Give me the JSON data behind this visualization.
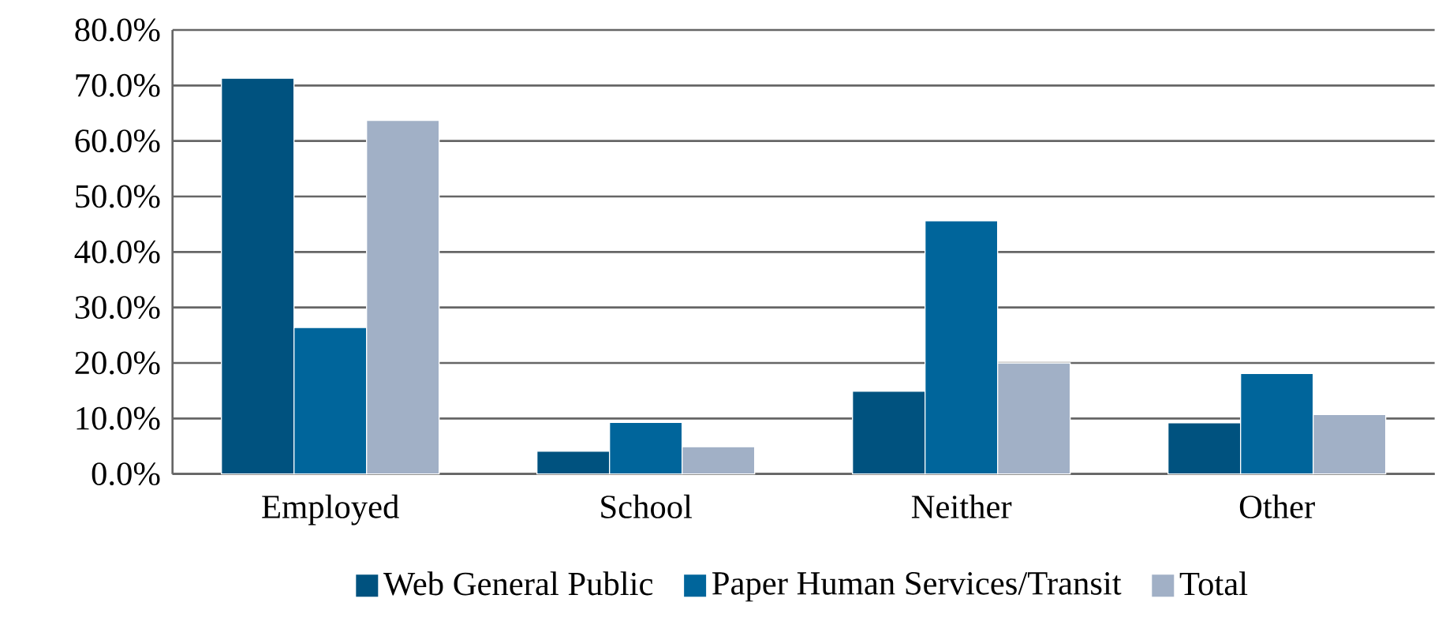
{
  "chart_data": {
    "type": "bar",
    "categories": [
      "Employed",
      "School",
      "Neither",
      "Other"
    ],
    "series": [
      {
        "name": "Web General Public",
        "color": "#00527f",
        "values": [
          71.3,
          4.1,
          14.9,
          9.2
        ]
      },
      {
        "name": "Paper Human Services/Transit",
        "color": "#00659b",
        "values": [
          26.4,
          9.3,
          45.6,
          18.1
        ]
      },
      {
        "name": "Total",
        "color": "#a1b0c6",
        "values": [
          63.7,
          4.9,
          20.0,
          10.7
        ]
      }
    ],
    "ylim": [
      0,
      80
    ],
    "yticks": [
      {
        "value": 0,
        "label": "0.0%"
      },
      {
        "value": 10,
        "label": "10.0%"
      },
      {
        "value": 20,
        "label": "20.0%"
      },
      {
        "value": 30,
        "label": "30.0%"
      },
      {
        "value": 40,
        "label": "40.0%"
      },
      {
        "value": 50,
        "label": "50.0%"
      },
      {
        "value": 60,
        "label": "60.0%"
      },
      {
        "value": 70,
        "label": "70.0%"
      },
      {
        "value": 80,
        "label": "80.0%"
      }
    ],
    "grid": "y",
    "legend": "bottom"
  }
}
